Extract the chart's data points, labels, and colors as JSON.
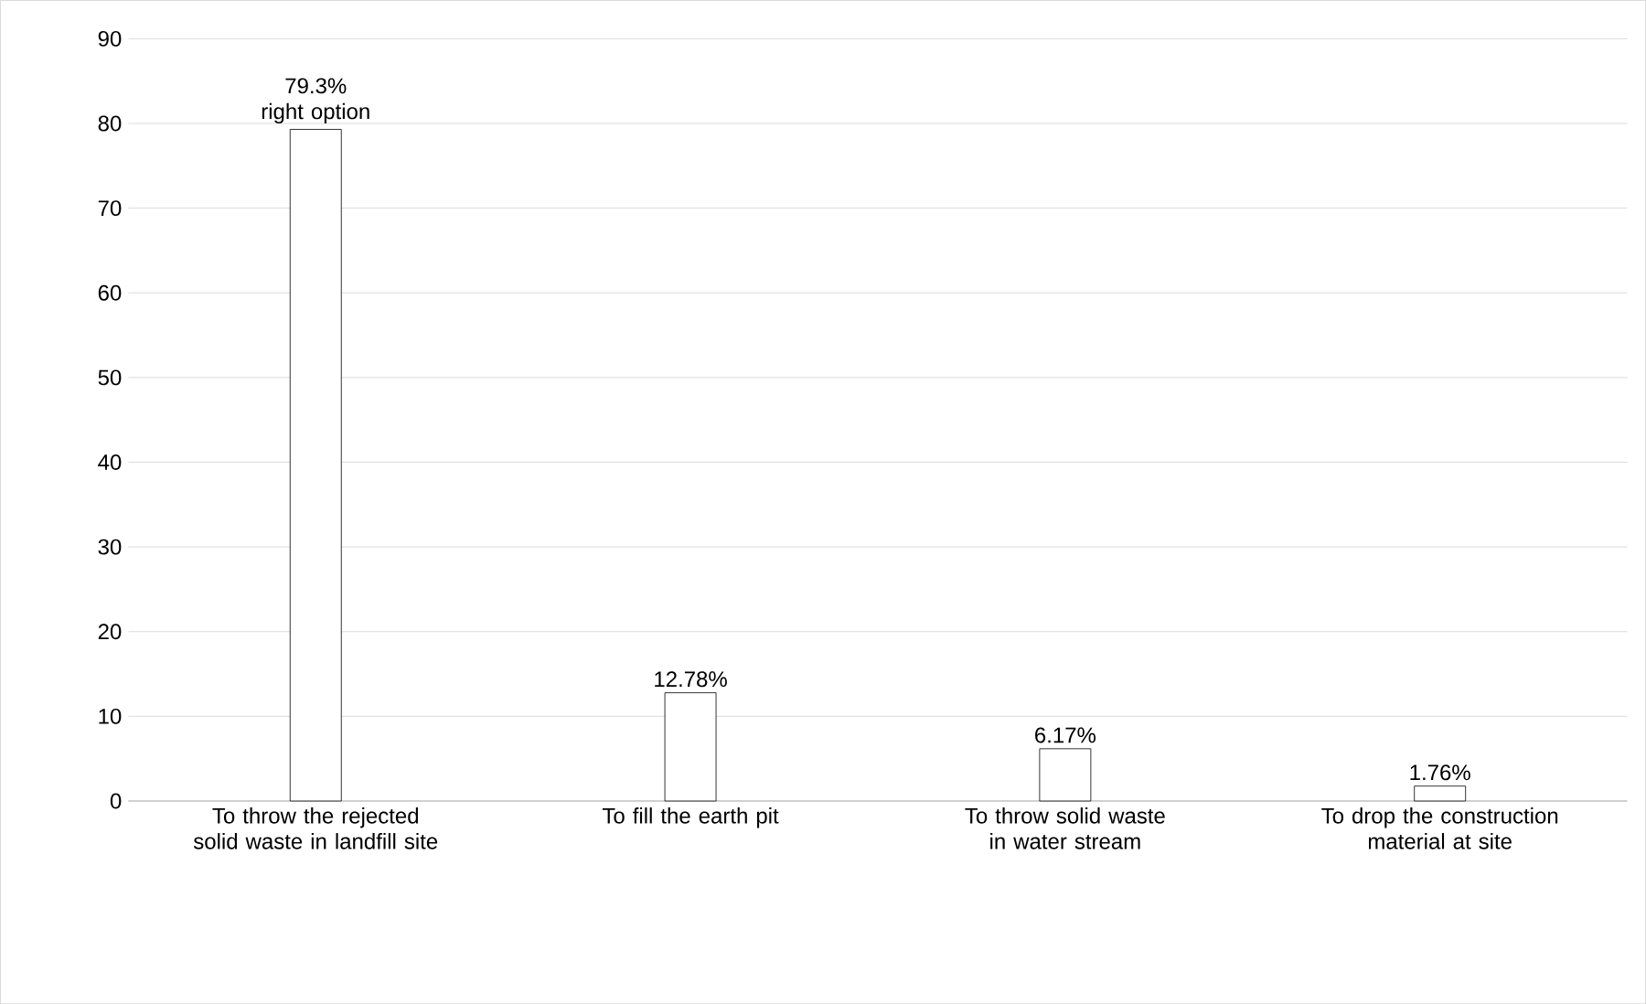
{
  "chart_data": {
    "type": "bar",
    "categories": [
      "To throw the rejected solid waste in landfill site",
      "To fill the earth pit",
      "To throw solid waste in water stream",
      "To drop the construction material at site"
    ],
    "values": [
      79.3,
      12.78,
      6.17,
      1.76
    ],
    "value_labels": [
      "79.3% right option",
      "12.78%",
      "6.17%",
      "1.76%"
    ],
    "color": "#000000",
    "ylim": [
      0,
      90
    ],
    "yticks": [
      0,
      10,
      20,
      30,
      40,
      50,
      60,
      70,
      80,
      90
    ],
    "grid": "y"
  }
}
